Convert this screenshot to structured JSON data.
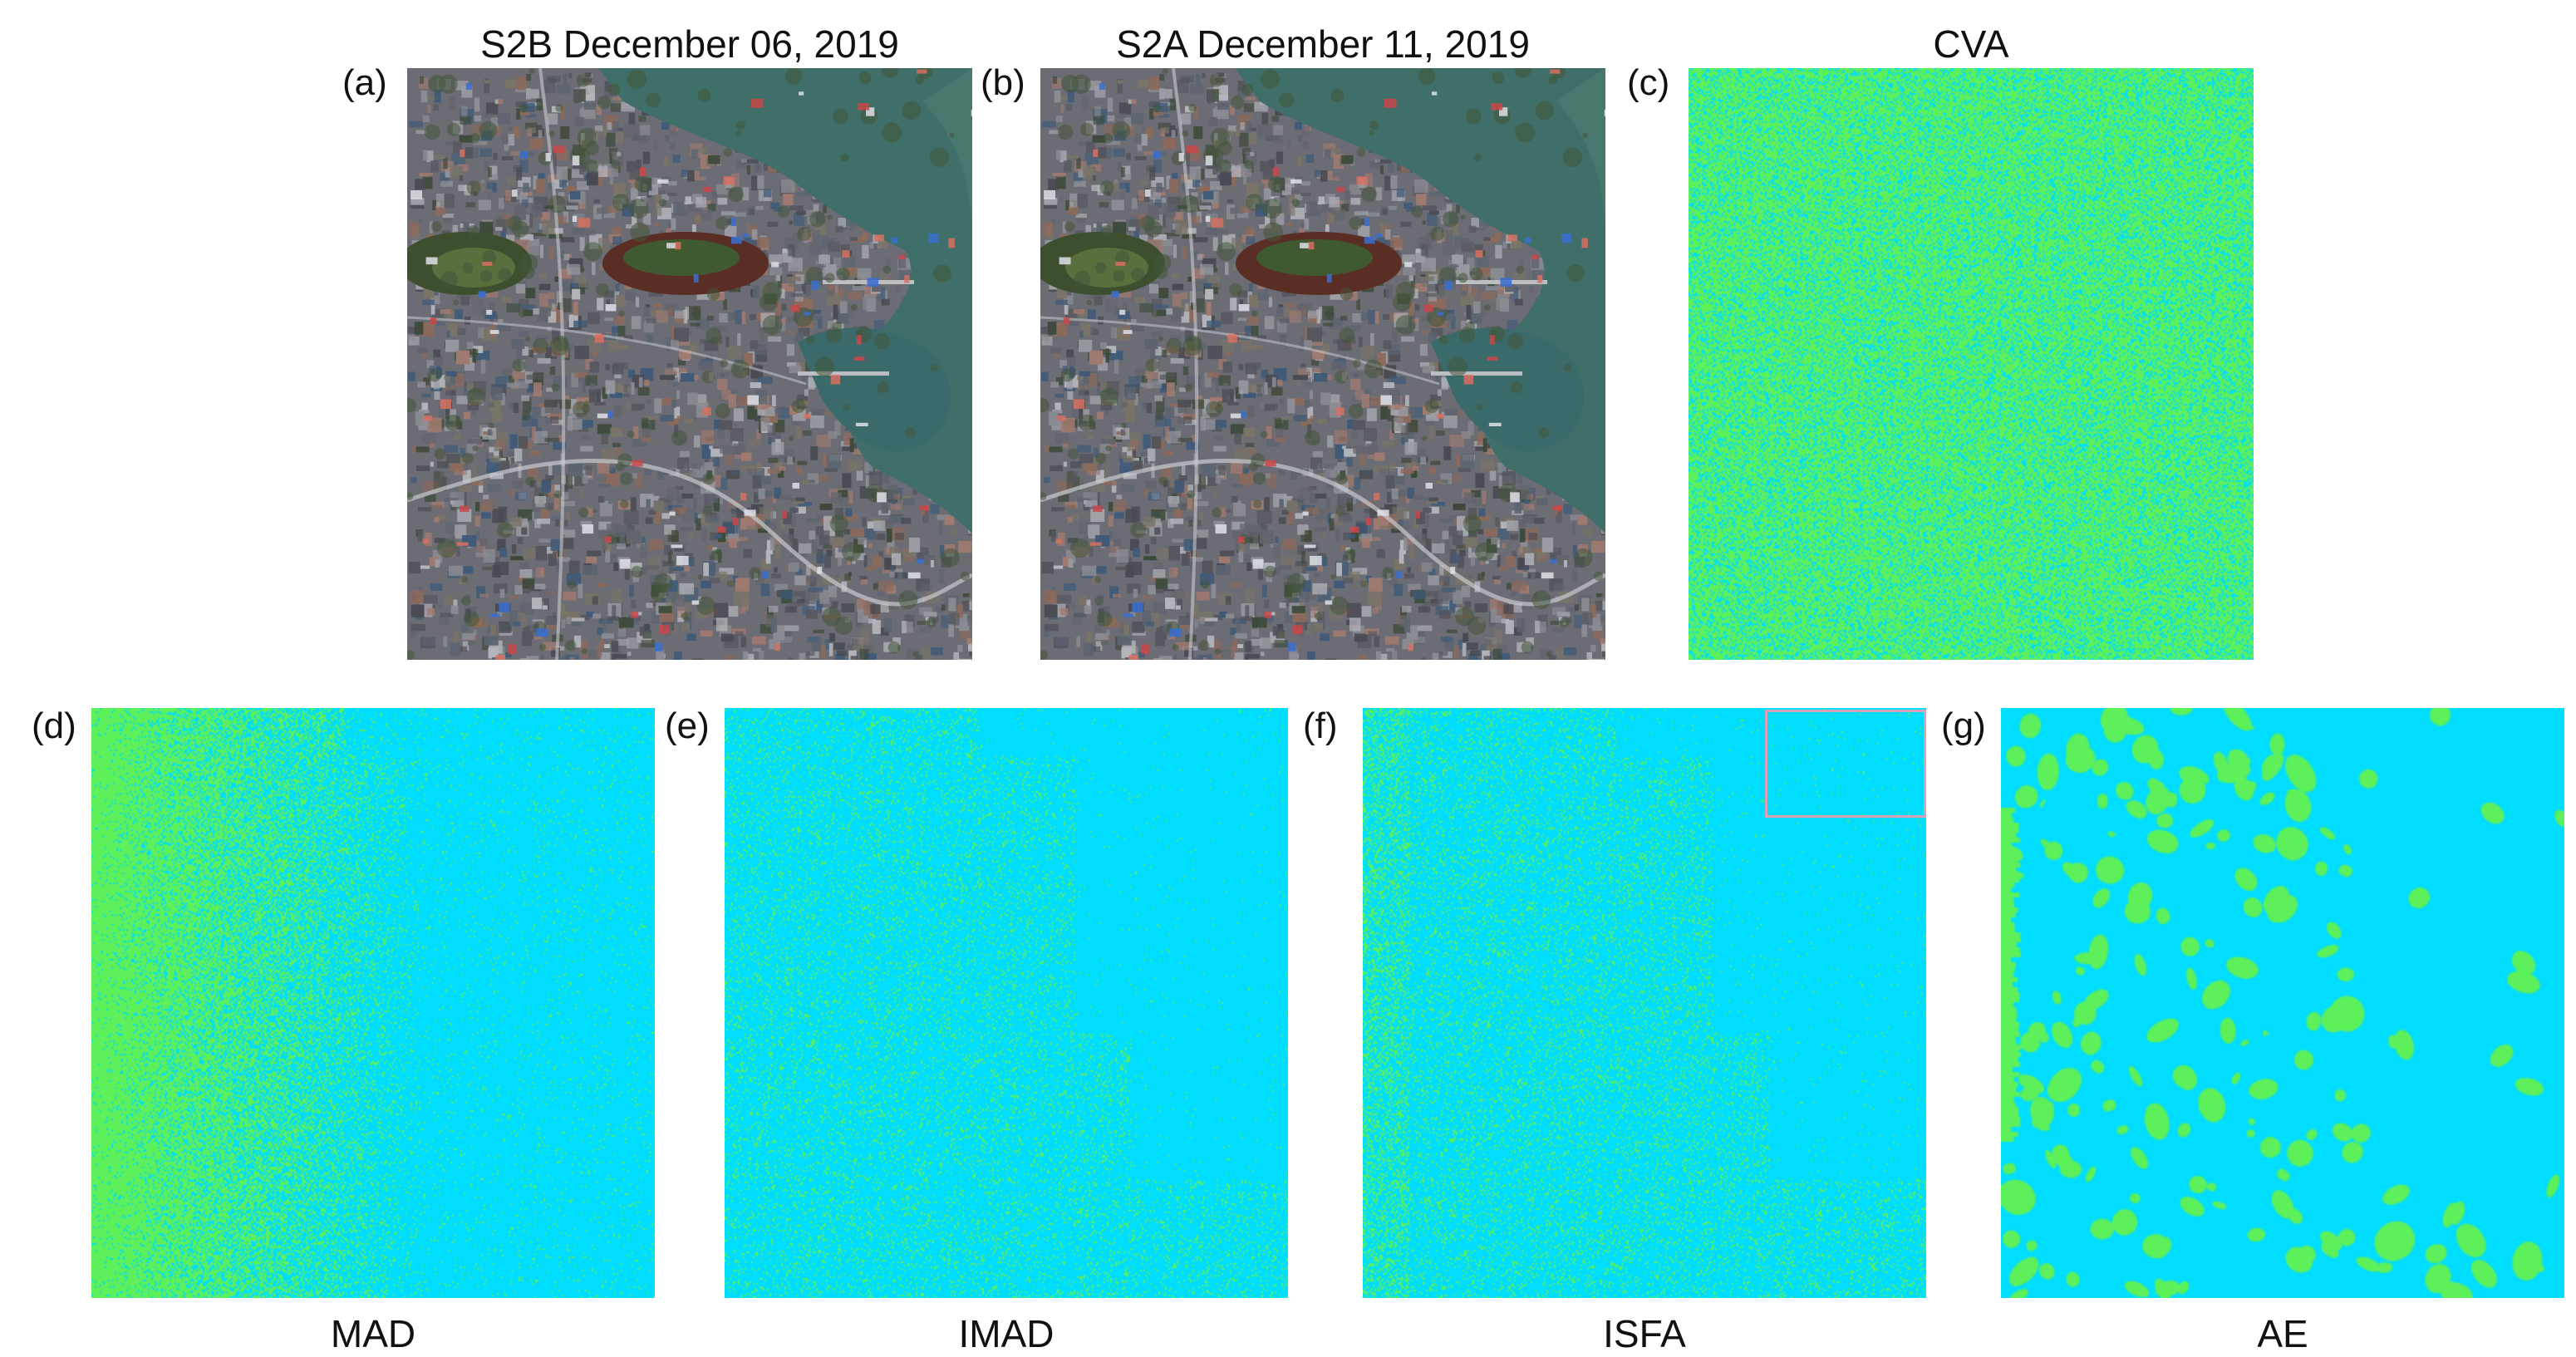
{
  "top_row": [
    {
      "id": "a",
      "label": "(a)",
      "title": "S2B December 06, 2019",
      "kind": "satellite"
    },
    {
      "id": "b",
      "label": "(b)",
      "title": "S2A December 11, 2019",
      "kind": "satellite"
    },
    {
      "id": "c",
      "label": "(c)",
      "title": "CVA",
      "kind": "change-map"
    }
  ],
  "bottom_row": [
    {
      "id": "d",
      "label": "(d)",
      "caption": "MAD",
      "kind": "change-map"
    },
    {
      "id": "e",
      "label": "(e)",
      "caption": "IMAD",
      "kind": "change-map"
    },
    {
      "id": "f",
      "label": "(f)",
      "caption": "ISFA",
      "kind": "change-map"
    },
    {
      "id": "g",
      "label": "(g)",
      "caption": "AE",
      "kind": "change-map"
    }
  ],
  "colors": {
    "change": "#5ef05a",
    "no_change": "#00ddff",
    "inset_box": "#d9a0b4",
    "water": "#3e6e68",
    "urban": "#6e6f78"
  },
  "icons": [
    "satellite-image",
    "change-detection-map"
  ]
}
